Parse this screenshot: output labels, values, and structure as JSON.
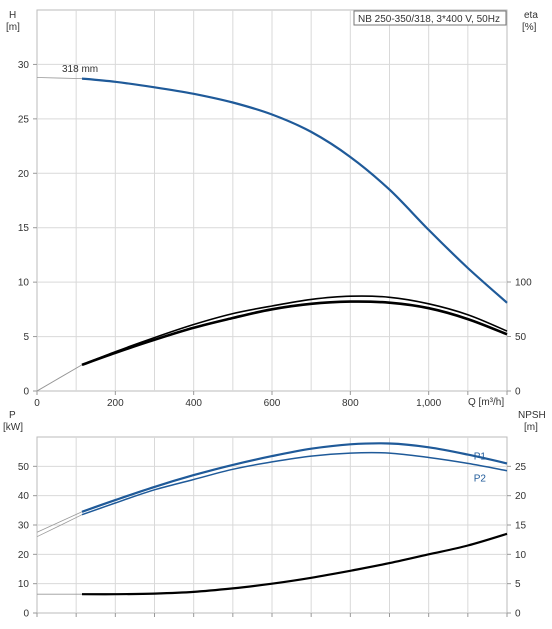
{
  "chart_data": [
    {
      "type": "line",
      "title": "NB 250-350/318, 3*400 V, 50Hz",
      "left_axis": {
        "label": "H",
        "unit": "[m]",
        "lim": [
          0,
          35
        ],
        "ticks": [
          "0",
          "5",
          "10",
          "15",
          "20",
          "25",
          "30"
        ]
      },
      "right_axis": {
        "label": "eta",
        "unit": "[%]",
        "lim": [
          0,
          100
        ],
        "ticks": [
          "0",
          "50",
          "100"
        ]
      },
      "x_axis": {
        "unit": "Q [m³/h]",
        "lim": [
          0,
          1200
        ],
        "ticks": [
          "0",
          "200",
          "400",
          "600",
          "800",
          "1,000"
        ]
      },
      "grid": true,
      "annotations": [
        "318 mm"
      ],
      "series": [
        {
          "key": "H",
          "axis": "left",
          "color": "#1f5a99",
          "x": [
            0,
            115,
            200,
            300,
            400,
            500,
            600,
            700,
            800,
            900,
            1000,
            1100,
            1200
          ],
          "y": [
            28.8,
            28.7,
            28.4,
            27.9,
            27.3,
            26.5,
            25.4,
            23.8,
            21.5,
            18.5,
            14.8,
            11.3,
            8.1
          ]
        },
        {
          "key": "eta_upper",
          "axis": "right",
          "color": "#000000",
          "x": [
            0,
            115,
            200,
            300,
            400,
            500,
            600,
            700,
            800,
            900,
            1000,
            1100,
            1200
          ],
          "y": [
            0,
            24,
            36,
            49,
            61,
            71,
            78,
            84,
            87,
            86,
            80,
            70,
            55
          ]
        },
        {
          "key": "eta_lower",
          "axis": "right",
          "color": "#000000",
          "x": [
            0,
            115,
            200,
            300,
            400,
            500,
            600,
            700,
            800,
            900,
            1000,
            1100,
            1200
          ],
          "y": [
            0,
            24,
            35,
            47,
            58,
            67,
            75,
            80,
            82,
            81,
            76,
            66,
            52
          ]
        }
      ]
    },
    {
      "type": "line",
      "left_axis": {
        "label": "P",
        "unit": "[kW]",
        "lim": [
          0,
          60
        ],
        "ticks": [
          "0",
          "10",
          "20",
          "30",
          "40",
          "50"
        ]
      },
      "right_axis": {
        "label": "NPSH",
        "unit": "[m]",
        "lim": [
          0,
          30
        ],
        "ticks": [
          "0",
          "5",
          "10",
          "15",
          "20",
          "25"
        ]
      },
      "x_axis": {
        "lim": [
          0,
          1200
        ]
      },
      "grid": true,
      "series": [
        {
          "key": "P1",
          "name": "P1",
          "axis": "left",
          "color": "#1f5a99",
          "x": [
            0,
            115,
            200,
            300,
            400,
            500,
            600,
            700,
            800,
            900,
            1000,
            1100,
            1200
          ],
          "y": [
            27.5,
            34.5,
            38.5,
            43,
            47,
            50.5,
            53.5,
            56,
            57.5,
            57.8,
            56.5,
            54,
            51
          ]
        },
        {
          "key": "P2",
          "name": "P2",
          "axis": "left",
          "color": "#1f5a99",
          "x": [
            0,
            115,
            200,
            300,
            400,
            500,
            600,
            700,
            800,
            900,
            1000,
            1100,
            1200
          ],
          "y": [
            26,
            33.5,
            37.5,
            42,
            45.5,
            49,
            51.5,
            53.5,
            54.5,
            54.5,
            53,
            51,
            48.5
          ]
        },
        {
          "key": "NPSH",
          "axis": "right",
          "color": "#000000",
          "x": [
            0,
            115,
            200,
            300,
            400,
            500,
            600,
            700,
            800,
            900,
            1000,
            1100,
            1200
          ],
          "y": [
            3.2,
            3.2,
            3.2,
            3.3,
            3.6,
            4.2,
            5.0,
            6.0,
            7.2,
            8.5,
            10.0,
            11.5,
            13.5
          ]
        }
      ]
    }
  ]
}
